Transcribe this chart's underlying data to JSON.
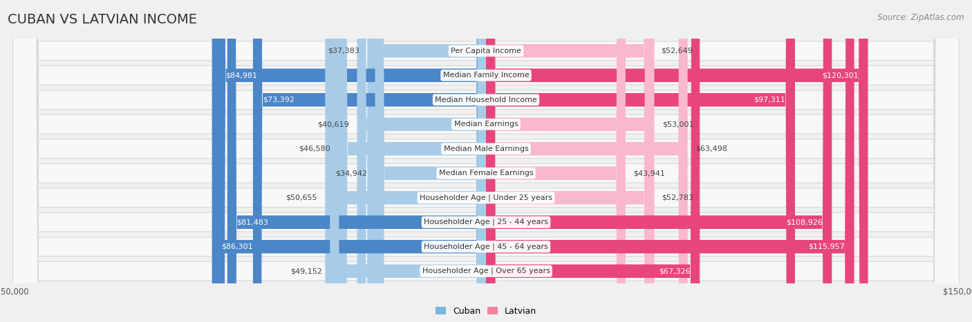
{
  "title": "CUBAN VS LATVIAN INCOME",
  "source": "Source: ZipAtlas.com",
  "categories": [
    "Per Capita Income",
    "Median Family Income",
    "Median Household Income",
    "Median Earnings",
    "Median Male Earnings",
    "Median Female Earnings",
    "Householder Age | Under 25 years",
    "Householder Age | 25 - 44 years",
    "Householder Age | 45 - 64 years",
    "Householder Age | Over 65 years"
  ],
  "cuban_values": [
    37383,
    84981,
    73392,
    40619,
    46580,
    34942,
    50655,
    81483,
    86301,
    49152
  ],
  "latvian_values": [
    52649,
    120301,
    97311,
    53001,
    63498,
    43941,
    52783,
    108926,
    115957,
    67326
  ],
  "cuban_color_light": "#a8cce8",
  "cuban_color_dark": "#4a86c8",
  "latvian_color_light": "#f9b8cc",
  "latvian_color_dark": "#e8457a",
  "threshold": 65000,
  "max_value": 150000,
  "bg_color": "#f0f0f0",
  "row_bg_color": "#f8f8f8",
  "row_edge_color": "#d8d8d8",
  "title_fontsize": 14,
  "source_fontsize": 8.5,
  "bar_label_fontsize": 8,
  "category_fontsize": 8,
  "axis_label_fontsize": 8.5
}
